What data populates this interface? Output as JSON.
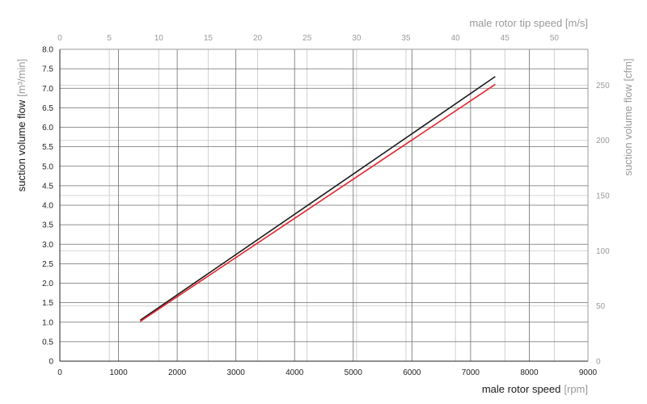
{
  "chart_data": {
    "type": "line",
    "title": "",
    "x_axis": {
      "label": "male rotor speed",
      "unit": "[rpm]",
      "range": [
        0,
        9000
      ],
      "ticks": [
        0,
        1000,
        2000,
        3000,
        4000,
        5000,
        6000,
        7000,
        8000,
        9000
      ]
    },
    "x2_axis": {
      "label": "male rotor tip speed [m/s]",
      "ticks": [
        0,
        5,
        10,
        15,
        20,
        25,
        30,
        35,
        40,
        45,
        50
      ]
    },
    "y_axis": {
      "label": "suction volume flow",
      "unit": "[m³/min]",
      "range": [
        0,
        8
      ],
      "ticks": [
        "0",
        "0.5",
        "1.0",
        "1.5",
        "2.0",
        "2.5",
        "3.0",
        "3.5",
        "4.0",
        "4.5",
        "5.0",
        "5.5",
        "6.0",
        "6.5",
        "7.0",
        "7.5",
        "8.0"
      ]
    },
    "y2_axis": {
      "label": "suction volume flow [cfm]",
      "range": [
        0,
        282.5
      ],
      "ticks": [
        0,
        50,
        100,
        150,
        200,
        250
      ]
    },
    "grid": true,
    "series": [
      {
        "color": "#1a1a1a",
        "x": [
          1370,
          7420
        ],
        "y": [
          1.05,
          7.3
        ]
      },
      {
        "color": "#e3262c",
        "x": [
          1370,
          7420
        ],
        "y": [
          1.02,
          7.1
        ]
      }
    ]
  }
}
